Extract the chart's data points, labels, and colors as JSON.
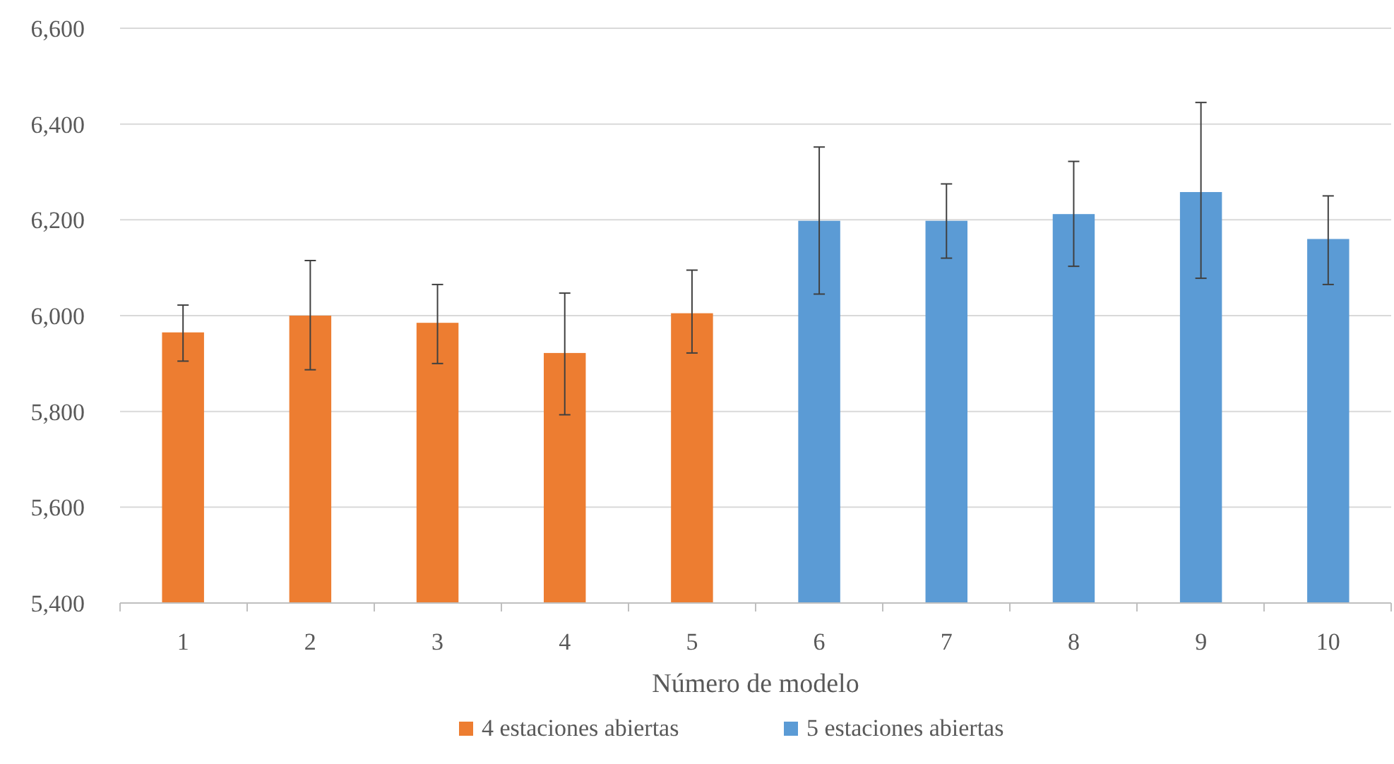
{
  "chart_data": {
    "type": "bar",
    "xlabel": "Número de modelo",
    "categories": [
      "1",
      "2",
      "3",
      "4",
      "5",
      "6",
      "7",
      "8",
      "9",
      "10"
    ],
    "series": [
      {
        "name": "4 estaciones abiertas",
        "color": "#ed7d31",
        "values": [
          5965,
          6000,
          5985,
          5922,
          6005,
          null,
          null,
          null,
          null,
          null
        ],
        "errors": [
          [
            5905,
            6022
          ],
          [
            5887,
            6115
          ],
          [
            5900,
            6065
          ],
          [
            5793,
            6047
          ],
          [
            5922,
            6095
          ],
          null,
          null,
          null,
          null,
          null
        ]
      },
      {
        "name": "5 estaciones abiertas",
        "color": "#5b9bd5",
        "values": [
          null,
          null,
          null,
          null,
          null,
          6198,
          6198,
          6212,
          6258,
          6160
        ],
        "errors": [
          null,
          null,
          null,
          null,
          null,
          [
            6045,
            6352
          ],
          [
            6120,
            6275
          ],
          [
            6103,
            6322
          ],
          [
            6078,
            6445
          ],
          [
            6065,
            6250
          ]
        ]
      }
    ],
    "ylim": [
      5400,
      6600
    ],
    "yticks": [
      {
        "value": 5400,
        "label": "5,400"
      },
      {
        "value": 5600,
        "label": "5,600"
      },
      {
        "value": 5800,
        "label": "5,800"
      },
      {
        "value": 6000,
        "label": "6,000"
      },
      {
        "value": 6200,
        "label": "6,200"
      },
      {
        "value": 6400,
        "label": "6,400"
      },
      {
        "value": 6600,
        "label": "6,600"
      }
    ],
    "grid": "y",
    "legend": "bottom"
  }
}
